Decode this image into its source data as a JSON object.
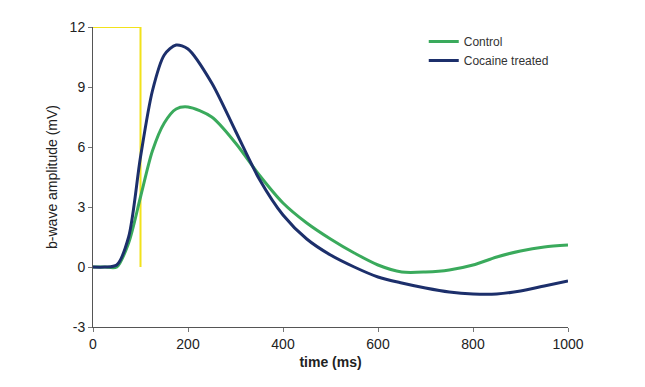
{
  "chart_data": {
    "type": "line",
    "x_label": "time (ms)",
    "y_label": "b-wave amplitude (mV)",
    "x": [
      0,
      25,
      50,
      75,
      100,
      125,
      150,
      175,
      200,
      250,
      300,
      350,
      400,
      450,
      500,
      550,
      600,
      650,
      700,
      750,
      800,
      850,
      900,
      950,
      1000
    ],
    "series": [
      {
        "name": "Control",
        "color": "#3aaa5c",
        "values": [
          0,
          0,
          0,
          1.2,
          3.5,
          5.8,
          7.2,
          7.9,
          8.0,
          7.5,
          6.2,
          4.6,
          3.2,
          2.2,
          1.4,
          0.7,
          0.1,
          -0.25,
          -0.25,
          -0.15,
          0.1,
          0.5,
          0.8,
          1.0,
          1.1
        ]
      },
      {
        "name": "Cocaine treated",
        "color": "#1c2f6b",
        "values": [
          0,
          0,
          0.1,
          1.5,
          5.5,
          8.8,
          10.6,
          11.1,
          10.9,
          9.2,
          6.8,
          4.4,
          2.6,
          1.4,
          0.6,
          0.0,
          -0.5,
          -0.8,
          -1.05,
          -1.25,
          -1.35,
          -1.35,
          -1.2,
          -0.95,
          -0.7
        ]
      }
    ],
    "stimulus": {
      "x": [
        0,
        100,
        100
      ],
      "values": [
        12,
        12,
        0
      ],
      "color": "#f2e21b"
    },
    "xlim": [
      0,
      1000
    ],
    "xticks": [
      0,
      200,
      400,
      600,
      800,
      1000
    ],
    "ylim": [
      -3,
      12
    ],
    "yticks": [
      -3,
      0,
      3,
      6,
      9,
      12
    ],
    "grid": false,
    "legend": "upper right"
  }
}
